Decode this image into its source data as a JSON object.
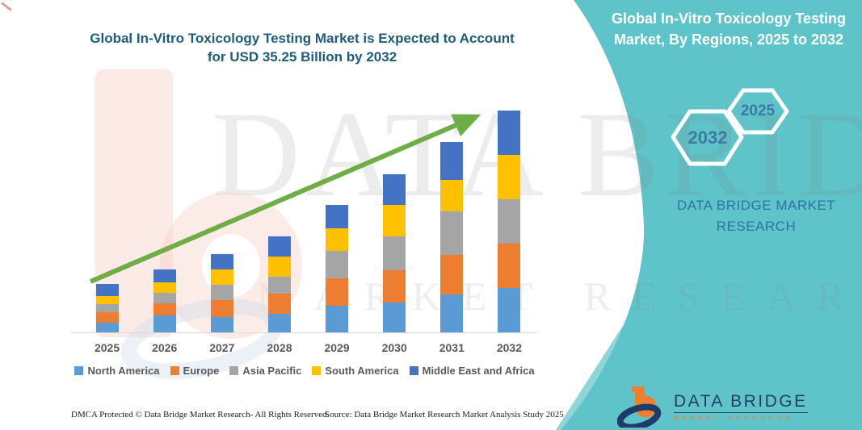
{
  "main_title": {
    "line1": "Global In-Vitro Toxicology Testing Market is Expected to Account",
    "line2": "for USD 35.25 Billion by 2032"
  },
  "right_panel": {
    "background_color": "#5fc4c9",
    "heading_line1": "Global In-Vitro Toxicology Testing",
    "heading_line2": "Market, By Regions, 2025 to 2032",
    "hexagons": [
      {
        "label": "2032"
      },
      {
        "label": "2025"
      }
    ],
    "caption_line1": "DATA BRIDGE MARKET",
    "caption_line2": "RESEARCH"
  },
  "watermark": {
    "line1": "DATA BRIDGE",
    "line2": "MARKET RESEARCH"
  },
  "chart_data": {
    "type": "bar",
    "stacked": true,
    "title": "Global In-Vitro Toxicology Testing Market is Expected to Account for USD 35.25 Billion by 2032",
    "unit": "USD Billion",
    "categories": [
      "2025",
      "2026",
      "2027",
      "2028",
      "2029",
      "2030",
      "2031",
      "2032"
    ],
    "series": [
      {
        "name": "North America",
        "color": "#5b9bd5",
        "values": [
          1.6,
          2.7,
          2.4,
          2.9,
          4.2,
          4.8,
          6.0,
          7.0
        ]
      },
      {
        "name": "Europe",
        "color": "#ed7d31",
        "values": [
          1.6,
          1.9,
          2.7,
          3.2,
          4.4,
          5.1,
          6.3,
          7.1
        ]
      },
      {
        "name": "Asia Pacific",
        "color": "#a5a5a5",
        "values": [
          1.3,
          1.7,
          2.5,
          2.8,
          4.3,
          5.4,
          6.9,
          7.0
        ]
      },
      {
        "name": "South America",
        "color": "#ffc000",
        "values": [
          1.3,
          1.7,
          2.4,
          3.2,
          3.6,
          5.0,
          5.0,
          7.1
        ]
      },
      {
        "name": "Middle East and Africa",
        "color": "#4472c4",
        "values": [
          1.9,
          2.0,
          2.4,
          3.1,
          3.7,
          4.8,
          6.0,
          7.05
        ]
      }
    ],
    "totals": [
      7.7,
      10.0,
      12.4,
      15.2,
      20.2,
      25.1,
      30.2,
      35.25
    ],
    "ylim": [
      0,
      36
    ],
    "gridlines": false,
    "legend_position": "bottom",
    "annotations": [
      "green upward trend arrow across bars"
    ],
    "arrow_color": "#6fae47"
  },
  "footer": {
    "left": "DMCA Protected © Data Bridge Market Research-  All Rights Reserved.",
    "source": "Source: Data Bridge Market Research  Market Analysis Study 2025"
  },
  "logo": {
    "name": "DATA BRIDGE",
    "tagline": "MARKET RESEARCH"
  }
}
